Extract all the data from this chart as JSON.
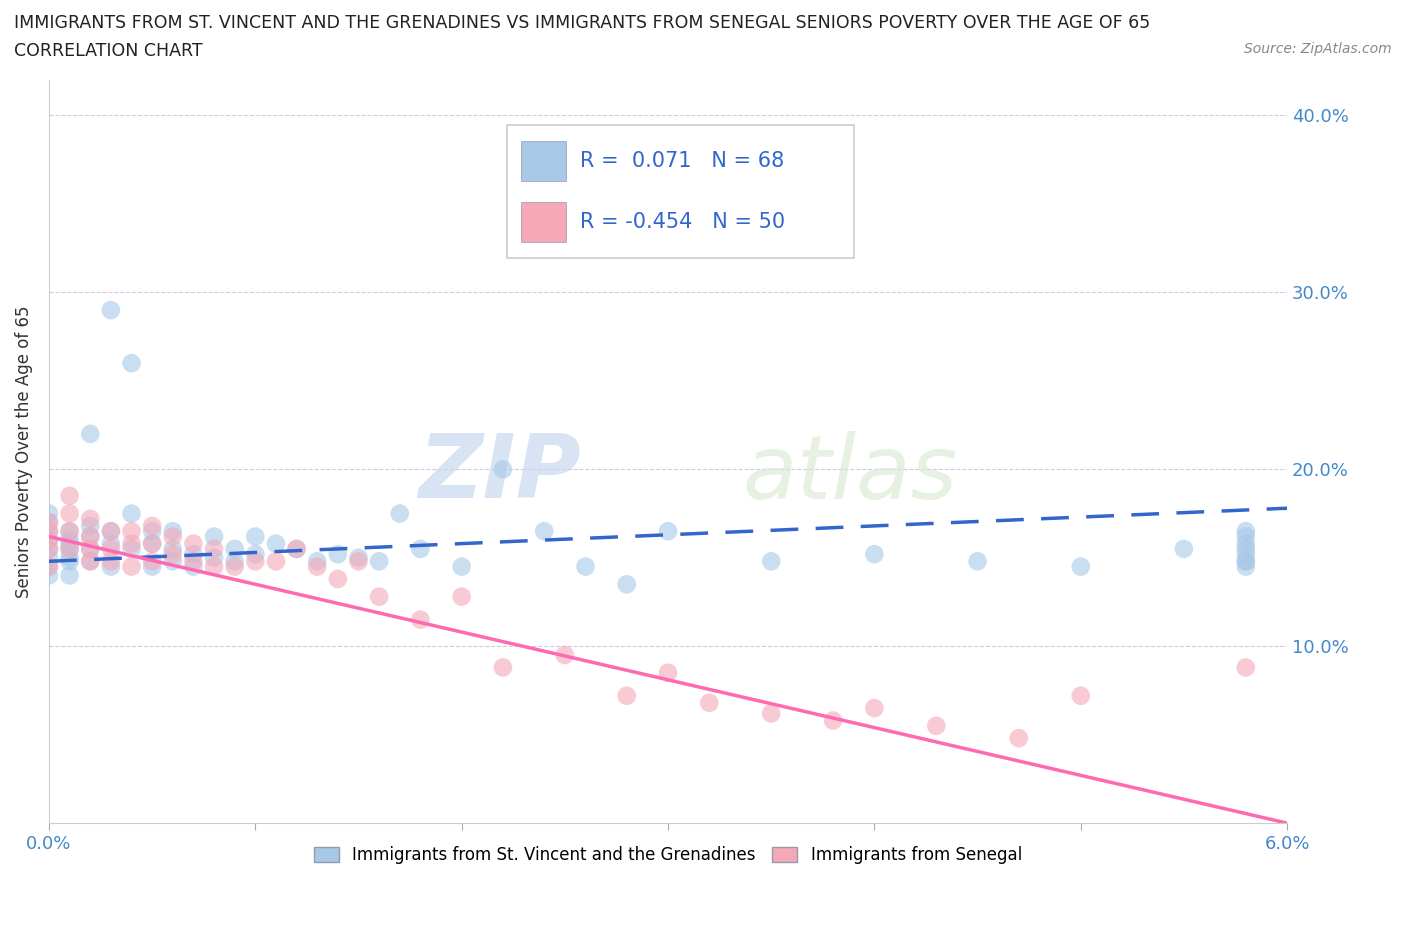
{
  "title_line1": "IMMIGRANTS FROM ST. VINCENT AND THE GRENADINES VS IMMIGRANTS FROM SENEGAL SENIORS POVERTY OVER THE AGE OF 65",
  "title_line2": "CORRELATION CHART",
  "source": "Source: ZipAtlas.com",
  "ylabel": "Seniors Poverty Over the Age of 65",
  "xmin": 0.0,
  "xmax": 0.06,
  "ymin": 0.0,
  "ymax": 0.42,
  "r_vincent": 0.071,
  "n_vincent": 68,
  "r_senegal": -0.454,
  "n_senegal": 50,
  "color_vincent": "#a8c8e8",
  "color_senegal": "#f4a8b8",
  "line_color_vincent": "#3366cc",
  "line_color_senegal": "#ff69b4",
  "watermark_zip": "ZIP",
  "watermark_atlas": "atlas",
  "legend_label_vincent": "Immigrants from St. Vincent and the Grenadines",
  "legend_label_senegal": "Immigrants from Senegal",
  "vincent_line_x0": 0.0,
  "vincent_line_y0": 0.148,
  "vincent_line_x1": 0.06,
  "vincent_line_y1": 0.178,
  "senegal_line_x0": 0.0,
  "senegal_line_y0": 0.162,
  "senegal_line_x1": 0.06,
  "senegal_line_y1": 0.0,
  "vincent_x": [
    0.0,
    0.0,
    0.0,
    0.0,
    0.0,
    0.0,
    0.0,
    0.0,
    0.001,
    0.001,
    0.001,
    0.001,
    0.001,
    0.001,
    0.001,
    0.002,
    0.002,
    0.002,
    0.002,
    0.002,
    0.003,
    0.003,
    0.003,
    0.003,
    0.004,
    0.004,
    0.004,
    0.005,
    0.005,
    0.005,
    0.006,
    0.006,
    0.006,
    0.007,
    0.007,
    0.008,
    0.008,
    0.009,
    0.009,
    0.01,
    0.01,
    0.011,
    0.012,
    0.013,
    0.014,
    0.015,
    0.016,
    0.017,
    0.018,
    0.02,
    0.022,
    0.024,
    0.026,
    0.028,
    0.03,
    0.035,
    0.04,
    0.045,
    0.05,
    0.055,
    0.058,
    0.058,
    0.058,
    0.058,
    0.058,
    0.058,
    0.058,
    0.058
  ],
  "vincent_y": [
    0.155,
    0.16,
    0.165,
    0.17,
    0.175,
    0.14,
    0.15,
    0.145,
    0.15,
    0.155,
    0.16,
    0.14,
    0.165,
    0.158,
    0.148,
    0.22,
    0.155,
    0.162,
    0.148,
    0.168,
    0.29,
    0.165,
    0.145,
    0.158,
    0.26,
    0.155,
    0.175,
    0.165,
    0.145,
    0.158,
    0.155,
    0.148,
    0.165,
    0.152,
    0.145,
    0.162,
    0.15,
    0.148,
    0.155,
    0.152,
    0.162,
    0.158,
    0.155,
    0.148,
    0.152,
    0.15,
    0.148,
    0.175,
    0.155,
    0.145,
    0.2,
    0.165,
    0.145,
    0.135,
    0.165,
    0.148,
    0.152,
    0.148,
    0.145,
    0.155,
    0.148,
    0.162,
    0.155,
    0.148,
    0.158,
    0.165,
    0.145,
    0.152
  ],
  "senegal_x": [
    0.0,
    0.0,
    0.0,
    0.0,
    0.0,
    0.001,
    0.001,
    0.001,
    0.001,
    0.002,
    0.002,
    0.002,
    0.002,
    0.003,
    0.003,
    0.003,
    0.004,
    0.004,
    0.004,
    0.005,
    0.005,
    0.005,
    0.006,
    0.006,
    0.007,
    0.007,
    0.008,
    0.008,
    0.009,
    0.01,
    0.011,
    0.012,
    0.013,
    0.014,
    0.015,
    0.016,
    0.018,
    0.02,
    0.022,
    0.025,
    0.028,
    0.03,
    0.032,
    0.035,
    0.038,
    0.04,
    0.043,
    0.047,
    0.05,
    0.058
  ],
  "senegal_y": [
    0.155,
    0.16,
    0.165,
    0.17,
    0.145,
    0.155,
    0.165,
    0.175,
    0.185,
    0.155,
    0.162,
    0.172,
    0.148,
    0.155,
    0.165,
    0.148,
    0.145,
    0.158,
    0.165,
    0.148,
    0.158,
    0.168,
    0.152,
    0.162,
    0.148,
    0.158,
    0.155,
    0.145,
    0.145,
    0.148,
    0.148,
    0.155,
    0.145,
    0.138,
    0.148,
    0.128,
    0.115,
    0.128,
    0.088,
    0.095,
    0.072,
    0.085,
    0.068,
    0.062,
    0.058,
    0.065,
    0.055,
    0.048,
    0.072,
    0.088
  ]
}
